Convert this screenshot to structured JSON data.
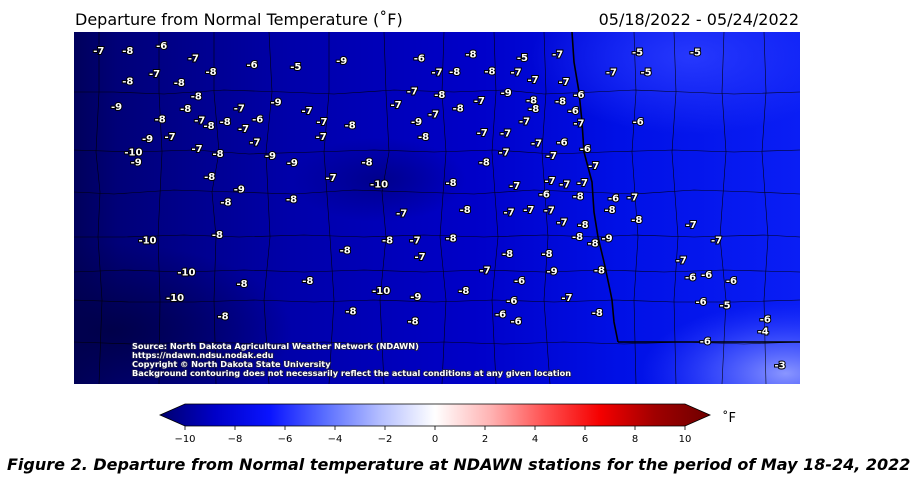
{
  "header": {
    "title": "Departure from Normal Temperature  (˚F)",
    "date_range": "05/18/2022 - 05/24/2022"
  },
  "credits": [
    "Source: North Dakota Agricultural Weather Network (NDAWN)",
    "https://ndawn.ndsu.nodak.edu",
    "Copyright © North Dakota State University",
    "Background contouring does not necessarily reflect the actual conditions at any given location"
  ],
  "colorbar": {
    "unit": "˚F",
    "ticks": [
      "−10",
      "−8",
      "−6",
      "−4",
      "−2",
      "0",
      "2",
      "4",
      "6",
      "8",
      "10"
    ],
    "range": [
      -10,
      10
    ],
    "colors": [
      "#00006e",
      "#0000c8",
      "#0a14ff",
      "#5a6eff",
      "#b4beff",
      "#ffffff",
      "#ffb4b4",
      "#ff5050",
      "#f50000",
      "#a00000",
      "#6e0000"
    ]
  },
  "caption": "Figure 2.   Departure from Normal temperature at NDAWN stations for the period of May 18-24, 2022",
  "stations": [
    {
      "v": "-7",
      "lon": 0.021,
      "lat": 0.96
    },
    {
      "v": "-8",
      "lon": 0.062,
      "lat": 0.96
    },
    {
      "v": "-6",
      "lon": 0.11,
      "lat": 0.975
    },
    {
      "v": "-7",
      "lon": 0.155,
      "lat": 0.938
    },
    {
      "v": "-6",
      "lon": 0.238,
      "lat": 0.918
    },
    {
      "v": "-5",
      "lon": 0.3,
      "lat": 0.912
    },
    {
      "v": "-9",
      "lon": 0.365,
      "lat": 0.93
    },
    {
      "v": "-6",
      "lon": 0.475,
      "lat": 0.938
    },
    {
      "v": "-8",
      "lon": 0.548,
      "lat": 0.95
    },
    {
      "v": "-5",
      "lon": 0.621,
      "lat": 0.94
    },
    {
      "v": "-7",
      "lon": 0.671,
      "lat": 0.95
    },
    {
      "v": "-5",
      "lon": 0.784,
      "lat": 0.955
    },
    {
      "v": "-5",
      "lon": 0.866,
      "lat": 0.955
    },
    {
      "v": "-7",
      "lon": 0.1,
      "lat": 0.892
    },
    {
      "v": "-8",
      "lon": 0.18,
      "lat": 0.898
    },
    {
      "v": "-7",
      "lon": 0.5,
      "lat": 0.896
    },
    {
      "v": "-8",
      "lon": 0.525,
      "lat": 0.898
    },
    {
      "v": "-8",
      "lon": 0.575,
      "lat": 0.9
    },
    {
      "v": "-7",
      "lon": 0.612,
      "lat": 0.896
    },
    {
      "v": "-7",
      "lon": 0.636,
      "lat": 0.875
    },
    {
      "v": "-7",
      "lon": 0.68,
      "lat": 0.868
    },
    {
      "v": "-7",
      "lon": 0.747,
      "lat": 0.896
    },
    {
      "v": "-5",
      "lon": 0.796,
      "lat": 0.896
    },
    {
      "v": "-8",
      "lon": 0.062,
      "lat": 0.87
    },
    {
      "v": "-8",
      "lon": 0.135,
      "lat": 0.865
    },
    {
      "v": "-7",
      "lon": 0.465,
      "lat": 0.84
    },
    {
      "v": "-8",
      "lon": 0.504,
      "lat": 0.83
    },
    {
      "v": "-9",
      "lon": 0.598,
      "lat": 0.836
    },
    {
      "v": "-8",
      "lon": 0.634,
      "lat": 0.814
    },
    {
      "v": "-6",
      "lon": 0.701,
      "lat": 0.83
    },
    {
      "v": "-8",
      "lon": 0.159,
      "lat": 0.826
    },
    {
      "v": "-9",
      "lon": 0.272,
      "lat": 0.808
    },
    {
      "v": "-7",
      "lon": 0.442,
      "lat": 0.8
    },
    {
      "v": "-8",
      "lon": 0.53,
      "lat": 0.79
    },
    {
      "v": "-7",
      "lon": 0.56,
      "lat": 0.812
    },
    {
      "v": "-8",
      "lon": 0.675,
      "lat": 0.81
    },
    {
      "v": "-9",
      "lon": 0.046,
      "lat": 0.795
    },
    {
      "v": "-8",
      "lon": 0.144,
      "lat": 0.788
    },
    {
      "v": "-7",
      "lon": 0.22,
      "lat": 0.79
    },
    {
      "v": "-7",
      "lon": 0.316,
      "lat": 0.782
    },
    {
      "v": "-8",
      "lon": 0.637,
      "lat": 0.788
    },
    {
      "v": "-6",
      "lon": 0.693,
      "lat": 0.782
    },
    {
      "v": "-8",
      "lon": 0.108,
      "lat": 0.758
    },
    {
      "v": "-7",
      "lon": 0.164,
      "lat": 0.755
    },
    {
      "v": "-8",
      "lon": 0.2,
      "lat": 0.75
    },
    {
      "v": "-6",
      "lon": 0.246,
      "lat": 0.758
    },
    {
      "v": "-7",
      "lon": 0.337,
      "lat": 0.75
    },
    {
      "v": "-9",
      "lon": 0.471,
      "lat": 0.75
    },
    {
      "v": "-7",
      "lon": 0.495,
      "lat": 0.772
    },
    {
      "v": "-7",
      "lon": 0.624,
      "lat": 0.752
    },
    {
      "v": "-7",
      "lon": 0.701,
      "lat": 0.745
    },
    {
      "v": "-6",
      "lon": 0.785,
      "lat": 0.75
    },
    {
      "v": "-8",
      "lon": 0.177,
      "lat": 0.738
    },
    {
      "v": "-7",
      "lon": 0.226,
      "lat": 0.73
    },
    {
      "v": "-8",
      "lon": 0.377,
      "lat": 0.74
    },
    {
      "v": "-7",
      "lon": 0.564,
      "lat": 0.718
    },
    {
      "v": "-7",
      "lon": 0.597,
      "lat": 0.716
    },
    {
      "v": "-9",
      "lon": 0.09,
      "lat": 0.7
    },
    {
      "v": "-7",
      "lon": 0.122,
      "lat": 0.705
    },
    {
      "v": "-7",
      "lon": 0.242,
      "lat": 0.69
    },
    {
      "v": "-7",
      "lon": 0.336,
      "lat": 0.705
    },
    {
      "v": "-8",
      "lon": 0.481,
      "lat": 0.705
    },
    {
      "v": "-7",
      "lon": 0.641,
      "lat": 0.686
    },
    {
      "v": "-6",
      "lon": 0.677,
      "lat": 0.69
    },
    {
      "v": "-6",
      "lon": 0.71,
      "lat": 0.67
    },
    {
      "v": "-10",
      "lon": 0.07,
      "lat": 0.66
    },
    {
      "v": "-7",
      "lon": 0.16,
      "lat": 0.67
    },
    {
      "v": "-9",
      "lon": 0.264,
      "lat": 0.65
    },
    {
      "v": "-8",
      "lon": 0.401,
      "lat": 0.63
    },
    {
      "v": "-8",
      "lon": 0.567,
      "lat": 0.63
    },
    {
      "v": "-7",
      "lon": 0.595,
      "lat": 0.66
    },
    {
      "v": "-7",
      "lon": 0.662,
      "lat": 0.65
    },
    {
      "v": "-9",
      "lon": 0.074,
      "lat": 0.63
    },
    {
      "v": "-8",
      "lon": 0.19,
      "lat": 0.655
    },
    {
      "v": "-9",
      "lon": 0.295,
      "lat": 0.628
    },
    {
      "v": "-7",
      "lon": 0.722,
      "lat": 0.62
    },
    {
      "v": "-8",
      "lon": 0.178,
      "lat": 0.588
    },
    {
      "v": "-7",
      "lon": 0.35,
      "lat": 0.585
    },
    {
      "v": "-10",
      "lon": 0.418,
      "lat": 0.565
    },
    {
      "v": "-8",
      "lon": 0.52,
      "lat": 0.57
    },
    {
      "v": "-7",
      "lon": 0.61,
      "lat": 0.56
    },
    {
      "v": "-7",
      "lon": 0.66,
      "lat": 0.575
    },
    {
      "v": "-7",
      "lon": 0.681,
      "lat": 0.565
    },
    {
      "v": "-7",
      "lon": 0.706,
      "lat": 0.57
    },
    {
      "v": "-9",
      "lon": 0.22,
      "lat": 0.55
    },
    {
      "v": "-8",
      "lon": 0.294,
      "lat": 0.52
    },
    {
      "v": "-8",
      "lon": 0.201,
      "lat": 0.512
    },
    {
      "v": "-6",
      "lon": 0.652,
      "lat": 0.535
    },
    {
      "v": "-8",
      "lon": 0.7,
      "lat": 0.53
    },
    {
      "v": "-6",
      "lon": 0.75,
      "lat": 0.523
    },
    {
      "v": "-7",
      "lon": 0.777,
      "lat": 0.527
    },
    {
      "v": "-8",
      "lon": 0.745,
      "lat": 0.49
    },
    {
      "v": "-7",
      "lon": 0.45,
      "lat": 0.48
    },
    {
      "v": "-8",
      "lon": 0.54,
      "lat": 0.49
    },
    {
      "v": "-7",
      "lon": 0.602,
      "lat": 0.482
    },
    {
      "v": "-7",
      "lon": 0.63,
      "lat": 0.49
    },
    {
      "v": "-7",
      "lon": 0.659,
      "lat": 0.488
    },
    {
      "v": "-7",
      "lon": 0.677,
      "lat": 0.452
    },
    {
      "v": "-8",
      "lon": 0.707,
      "lat": 0.445
    },
    {
      "v": "-8",
      "lon": 0.783,
      "lat": 0.46
    },
    {
      "v": "-7",
      "lon": 0.86,
      "lat": 0.445
    },
    {
      "v": "-8",
      "lon": 0.189,
      "lat": 0.415
    },
    {
      "v": "-8",
      "lon": 0.37,
      "lat": 0.37
    },
    {
      "v": "-8",
      "lon": 0.43,
      "lat": 0.4
    },
    {
      "v": "-7",
      "lon": 0.469,
      "lat": 0.4
    },
    {
      "v": "-8",
      "lon": 0.52,
      "lat": 0.405
    },
    {
      "v": "-8",
      "lon": 0.6,
      "lat": 0.36
    },
    {
      "v": "-8",
      "lon": 0.656,
      "lat": 0.36
    },
    {
      "v": "-8",
      "lon": 0.699,
      "lat": 0.41
    },
    {
      "v": "-8",
      "lon": 0.721,
      "lat": 0.39
    },
    {
      "v": "-9",
      "lon": 0.741,
      "lat": 0.405
    },
    {
      "v": "-7",
      "lon": 0.896,
      "lat": 0.4
    },
    {
      "v": "-10",
      "lon": 0.09,
      "lat": 0.4
    },
    {
      "v": "-7",
      "lon": 0.476,
      "lat": 0.35
    },
    {
      "v": "-7",
      "lon": 0.846,
      "lat": 0.34
    },
    {
      "v": "-10",
      "lon": 0.145,
      "lat": 0.305
    },
    {
      "v": "-7",
      "lon": 0.568,
      "lat": 0.31
    },
    {
      "v": "-6",
      "lon": 0.617,
      "lat": 0.28
    },
    {
      "v": "-9",
      "lon": 0.663,
      "lat": 0.308
    },
    {
      "v": "-8",
      "lon": 0.73,
      "lat": 0.31
    },
    {
      "v": "-6",
      "lon": 0.859,
      "lat": 0.29
    },
    {
      "v": "-6",
      "lon": 0.882,
      "lat": 0.297
    },
    {
      "v": "-6",
      "lon": 0.917,
      "lat": 0.28
    },
    {
      "v": "-8",
      "lon": 0.317,
      "lat": 0.28
    },
    {
      "v": "-8",
      "lon": 0.224,
      "lat": 0.27
    },
    {
      "v": "-10",
      "lon": 0.129,
      "lat": 0.23
    },
    {
      "v": "-10",
      "lon": 0.421,
      "lat": 0.25
    },
    {
      "v": "-9",
      "lon": 0.47,
      "lat": 0.232
    },
    {
      "v": "-8",
      "lon": 0.538,
      "lat": 0.25
    },
    {
      "v": "-6",
      "lon": 0.606,
      "lat": 0.22
    },
    {
      "v": "-7",
      "lon": 0.684,
      "lat": 0.23
    },
    {
      "v": "-6",
      "lon": 0.874,
      "lat": 0.218
    },
    {
      "v": "-5",
      "lon": 0.908,
      "lat": 0.207
    },
    {
      "v": "-8",
      "lon": 0.197,
      "lat": 0.175
    },
    {
      "v": "-8",
      "lon": 0.378,
      "lat": 0.19
    },
    {
      "v": "-8",
      "lon": 0.466,
      "lat": 0.16
    },
    {
      "v": "-6",
      "lon": 0.59,
      "lat": 0.18
    },
    {
      "v": "-6",
      "lon": 0.612,
      "lat": 0.16
    },
    {
      "v": "-8",
      "lon": 0.727,
      "lat": 0.185
    },
    {
      "v": "-6",
      "lon": 0.965,
      "lat": 0.165
    },
    {
      "v": "-4",
      "lon": 0.962,
      "lat": 0.13
    },
    {
      "v": "-6",
      "lon": 0.88,
      "lat": 0.1
    },
    {
      "v": "-3",
      "lon": 0.986,
      "lat": 0.03
    }
  ]
}
